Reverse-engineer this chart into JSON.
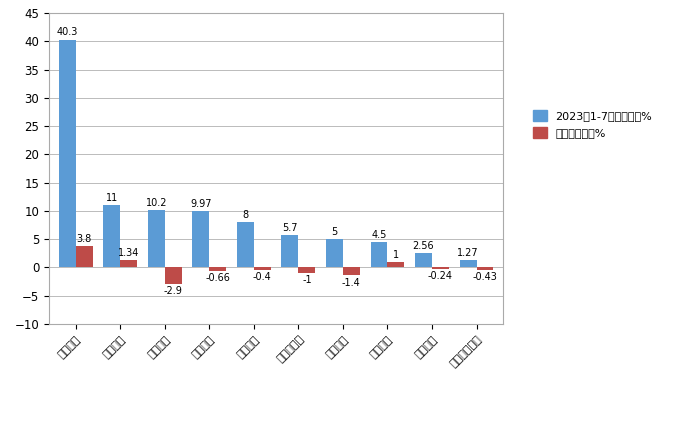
{
  "categories": [
    "长城汽车",
    "江淮汽车",
    "江铃汽车",
    "上汽大通",
    "郑州日产",
    "江西五十铃",
    "长安汽车",
    "福田汽车",
    "河北中兴",
    "上汽通用五菱"
  ],
  "market_share": [
    40.3,
    11,
    10.2,
    9.97,
    8,
    5.7,
    5,
    4.5,
    2.56,
    1.27
  ],
  "yoy_change": [
    3.8,
    1.34,
    -2.9,
    -0.66,
    -0.4,
    -1,
    -1.4,
    1,
    -0.24,
    -0.43
  ],
  "bar_color_blue": "#5B9BD5",
  "bar_color_red": "#BE4B48",
  "legend_label1": "2023年1-7月市场份额%",
  "legend_label2": "同比份额增减%",
  "ylim_min": -10,
  "ylim_max": 45,
  "yticks": [
    -10,
    -5,
    0,
    5,
    10,
    15,
    20,
    25,
    30,
    35,
    40,
    45
  ],
  "bg_color": "#FFFFFF",
  "plot_bg_color": "#FFFFFF",
  "grid_color": "#BBBBBB",
  "border_color": "#AAAAAA"
}
